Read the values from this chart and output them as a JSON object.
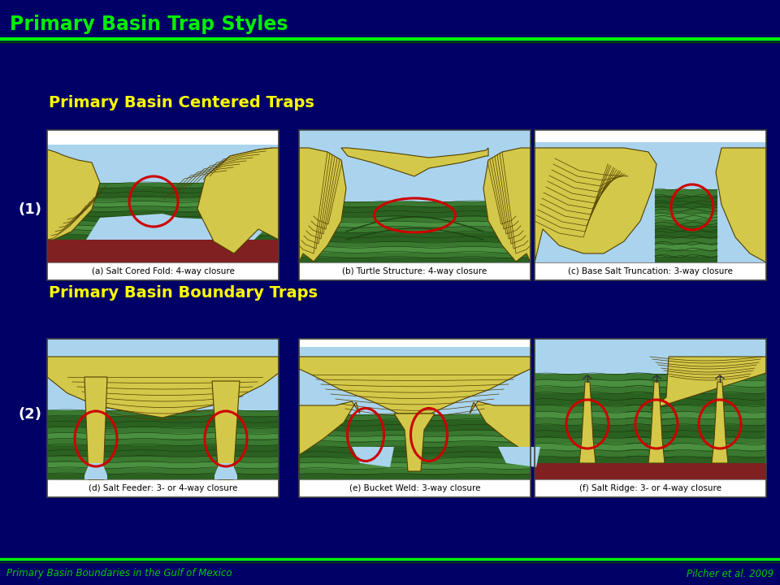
{
  "title": "Primary Basin Trap Styles",
  "subtitle1": "Primary Basin Centered Traps",
  "subtitle2": "Primary Basin Boundary Traps",
  "footer_left": "Primary Basin Boundaries in the Gulf of Mexico",
  "footer_right": "Pilcher et al. 2009",
  "bg_color": "#000066",
  "title_color": "#00ee00",
  "subtitle_color": "#ffff00",
  "footer_color": "#00cc00",
  "header_line_color": "#00ff00",
  "captions": [
    "(a) Salt Cored Fold: 4-way closure",
    "(b) Turtle Structure: 4-way closure",
    "(c) Base Salt Truncation: 3-way closure",
    "(d) Salt Feeder: 3- or 4-way closure",
    "(e) Bucket Weld: 3-way closure",
    "(f) Salt Ridge: 3- or 4-way closure"
  ],
  "label1": "(1)",
  "label2": "(2)",
  "sky_blue": "#aad4ee",
  "salt_yellow": "#d4c84a",
  "salt_yellow2": "#c8b830",
  "green_dark": "#2a6020",
  "green_mid": "#3a7830",
  "green_light": "#4a9040",
  "gray_top": "#909090",
  "red_brown": "#802020",
  "panel_bg": "#ffffff",
  "caption_bg": "#f0f0f0"
}
